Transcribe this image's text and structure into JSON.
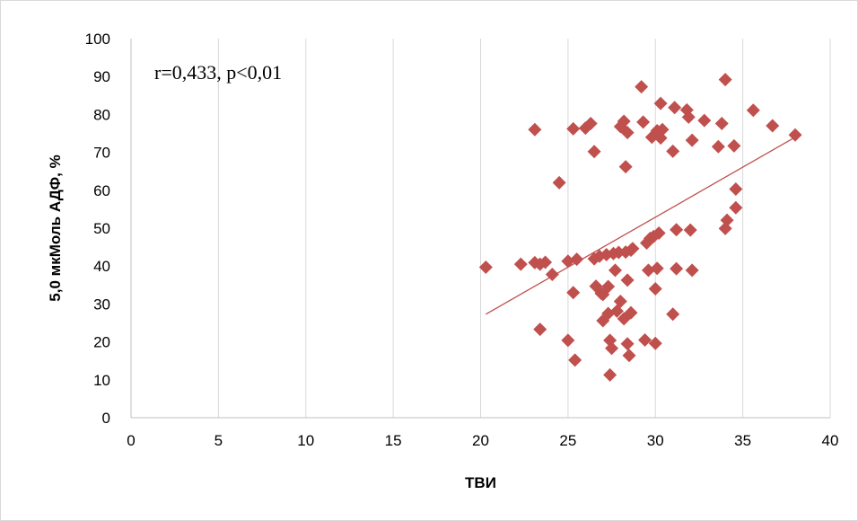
{
  "chart_data": {
    "type": "scatter",
    "xlabel": "ТВИ",
    "ylabel": "5,0 мкМоль АДФ, %",
    "annotation": "r=0,433, p<0,01",
    "xlim": [
      0,
      40
    ],
    "ylim": [
      0,
      100
    ],
    "xticks": [
      0,
      5,
      10,
      15,
      20,
      25,
      30,
      35,
      40
    ],
    "yticks": [
      0,
      10,
      20,
      30,
      40,
      50,
      60,
      70,
      80,
      90,
      100
    ],
    "grid": "vertical",
    "marker_color": "#c0504d",
    "trendline": {
      "color": "#c0504d",
      "x": [
        20.3,
        38.0
      ],
      "y": [
        27.3,
        74.0
      ]
    },
    "points": [
      [
        20.3,
        39.7
      ],
      [
        22.3,
        40.5
      ],
      [
        23.1,
        76.0
      ],
      [
        23.1,
        40.9
      ],
      [
        23.4,
        40.5
      ],
      [
        23.4,
        23.3
      ],
      [
        23.7,
        41.0
      ],
      [
        24.1,
        37.8
      ],
      [
        24.5,
        62.0
      ],
      [
        25.0,
        41.3
      ],
      [
        25.0,
        20.4
      ],
      [
        25.3,
        76.2
      ],
      [
        25.3,
        33.0
      ],
      [
        25.4,
        15.2
      ],
      [
        25.5,
        41.8
      ],
      [
        26.0,
        76.4
      ],
      [
        26.3,
        77.6
      ],
      [
        26.5,
        70.2
      ],
      [
        26.5,
        41.9
      ],
      [
        26.6,
        34.7
      ],
      [
        26.8,
        42.6
      ],
      [
        26.9,
        32.8
      ],
      [
        27.0,
        25.6
      ],
      [
        27.0,
        32.5
      ],
      [
        27.2,
        43.0
      ],
      [
        27.3,
        27.5
      ],
      [
        27.3,
        34.6
      ],
      [
        27.4,
        20.4
      ],
      [
        27.4,
        11.3
      ],
      [
        27.5,
        18.3
      ],
      [
        27.6,
        43.3
      ],
      [
        27.7,
        38.9
      ],
      [
        27.8,
        28.1
      ],
      [
        27.9,
        43.6
      ],
      [
        28.0,
        30.7
      ],
      [
        28.0,
        76.8
      ],
      [
        28.2,
        26.1
      ],
      [
        28.2,
        78.2
      ],
      [
        28.3,
        43.7
      ],
      [
        28.3,
        66.2
      ],
      [
        28.4,
        75.2
      ],
      [
        28.4,
        36.3
      ],
      [
        28.4,
        19.5
      ],
      [
        28.5,
        16.4
      ],
      [
        28.6,
        44.2
      ],
      [
        28.6,
        27.7
      ],
      [
        28.7,
        44.6
      ],
      [
        29.2,
        87.3
      ],
      [
        29.3,
        78.0
      ],
      [
        29.4,
        20.5
      ],
      [
        29.5,
        46.1
      ],
      [
        29.6,
        38.9
      ],
      [
        29.7,
        47.3
      ],
      [
        29.8,
        74.0
      ],
      [
        29.9,
        47.8
      ],
      [
        30.0,
        34.0
      ],
      [
        30.0,
        19.6
      ],
      [
        30.1,
        75.7
      ],
      [
        30.1,
        39.4
      ],
      [
        30.2,
        48.7
      ],
      [
        30.3,
        82.9
      ],
      [
        30.3,
        73.8
      ],
      [
        30.4,
        76.0
      ],
      [
        31.0,
        27.3
      ],
      [
        31.0,
        70.3
      ],
      [
        31.1,
        81.8
      ],
      [
        31.2,
        39.3
      ],
      [
        31.2,
        49.6
      ],
      [
        31.8,
        81.2
      ],
      [
        31.9,
        79.3
      ],
      [
        32.0,
        49.5
      ],
      [
        32.1,
        38.9
      ],
      [
        32.1,
        73.2
      ],
      [
        32.8,
        78.4
      ],
      [
        33.6,
        71.5
      ],
      [
        33.8,
        77.6
      ],
      [
        34.0,
        89.2
      ],
      [
        34.0,
        49.9
      ],
      [
        34.1,
        52.1
      ],
      [
        34.5,
        71.7
      ],
      [
        34.6,
        60.3
      ],
      [
        34.6,
        55.4
      ],
      [
        35.6,
        81.1
      ],
      [
        36.7,
        77.0
      ],
      [
        38.0,
        74.6
      ]
    ]
  }
}
